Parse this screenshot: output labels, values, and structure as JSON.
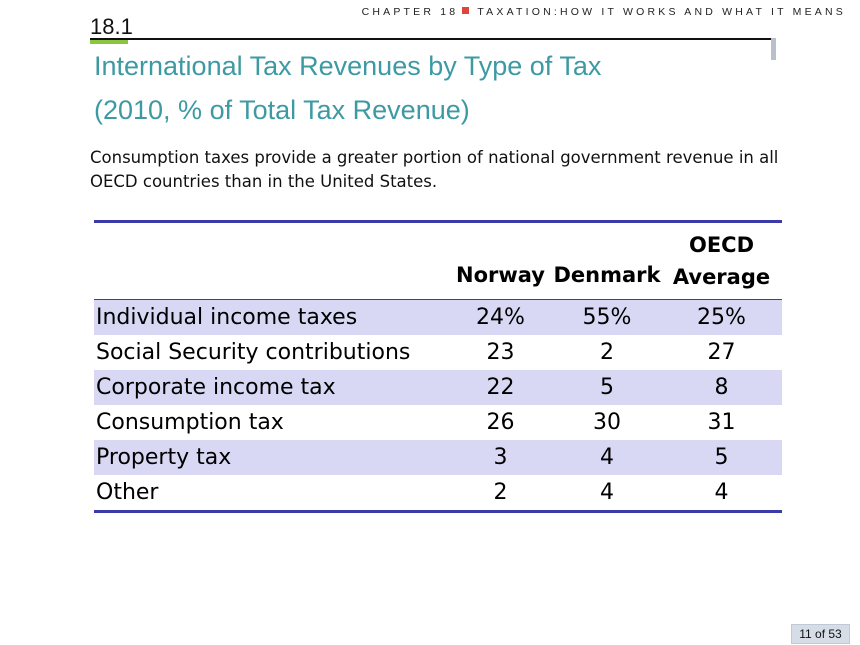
{
  "header": {
    "chapter": "CHAPTER 18",
    "topic": "TAXATION:HOW IT WORKS AND WHAT IT MEANS",
    "accent_color": "#e0453a"
  },
  "section_number": "18.1",
  "title_line1": "International Tax Revenues by Type of Tax",
  "title_line2": "(2010, % of Total Tax Revenue)",
  "subtitle": "Consumption taxes provide a greater portion of national government revenue in all OECD countries than in the United States.",
  "table": {
    "columns": [
      "",
      "Norway",
      "Denmark",
      "OECD Average"
    ],
    "rows": [
      {
        "label": "Individual income taxes",
        "values": [
          "24%",
          "55%",
          "25%"
        ]
      },
      {
        "label": "Social Security contributions",
        "values": [
          "23",
          "2",
          "27"
        ]
      },
      {
        "label": "Corporate income tax",
        "values": [
          "22",
          "5",
          "8"
        ]
      },
      {
        "label": "Consumption tax",
        "values": [
          "26",
          "30",
          "31"
        ]
      },
      {
        "label": "Property tax",
        "values": [
          "3",
          "4",
          "5"
        ]
      },
      {
        "label": "Other",
        "values": [
          "2",
          "4",
          "4"
        ]
      }
    ],
    "shade_color": "#d8d8f4",
    "rule_color": "#3a3aa8"
  },
  "page_indicator": "11 of 53",
  "colors": {
    "title": "#3d9aa3",
    "section_accent": "#8cc63f"
  }
}
